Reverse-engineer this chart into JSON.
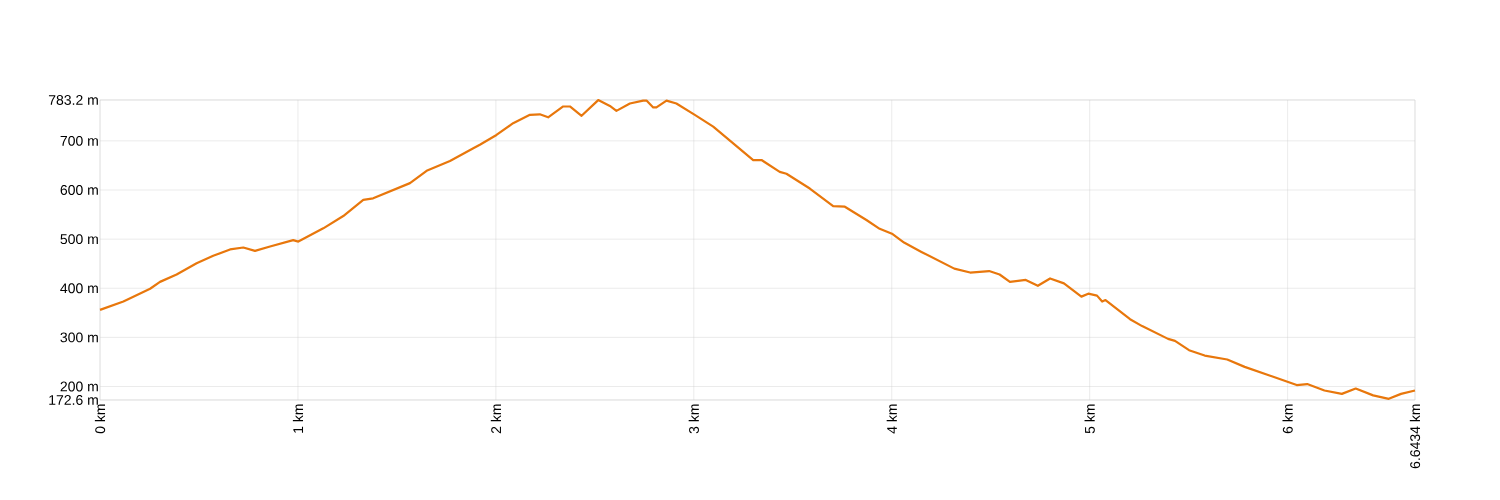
{
  "chart_data": {
    "type": "line",
    "color": "#e8770c",
    "grid": true,
    "marker": "none",
    "line_style": "solid",
    "xlim": [
      0,
      6.6434
    ],
    "ylim": [
      172.6,
      783.2
    ],
    "xticks": [
      {
        "value": 0,
        "label": "0 km"
      },
      {
        "value": 1,
        "label": "1 km"
      },
      {
        "value": 2,
        "label": "2 km"
      },
      {
        "value": 3,
        "label": "3 km"
      },
      {
        "value": 4,
        "label": "4 km"
      },
      {
        "value": 5,
        "label": "5 km"
      },
      {
        "value": 6,
        "label": "6 km"
      },
      {
        "value": 6.6434,
        "label": "6.6434 km"
      }
    ],
    "yticks": [
      {
        "value": 172.6,
        "label": "172.6 m"
      },
      {
        "value": 200,
        "label": "200 m"
      },
      {
        "value": 300,
        "label": "300 m"
      },
      {
        "value": 400,
        "label": "400 m"
      },
      {
        "value": 500,
        "label": "500 m"
      },
      {
        "value": 600,
        "label": "600 m"
      },
      {
        "value": 700,
        "label": "700 m"
      },
      {
        "value": 783.2,
        "label": "783.2 m"
      }
    ],
    "x": [
      0,
      0.118,
      0.253,
      0.303,
      0.387,
      0.488,
      0.572,
      0.657,
      0.724,
      0.783,
      0.859,
      0.976,
      1.002,
      1.128,
      1.229,
      1.33,
      1.38,
      1.566,
      1.65,
      1.768,
      1.886,
      1.919,
      2.003,
      2.087,
      2.172,
      2.222,
      2.264,
      2.34,
      2.374,
      2.433,
      2.517,
      2.576,
      2.609,
      2.677,
      2.744,
      2.761,
      2.795,
      2.811,
      2.862,
      2.912,
      3.005,
      3.098,
      3.199,
      3.3,
      3.342,
      3.434,
      3.468,
      3.586,
      3.704,
      3.763,
      3.872,
      3.939,
      4.001,
      4.062,
      4.15,
      4.316,
      4.396,
      4.492,
      4.545,
      4.597,
      4.677,
      4.738,
      4.8,
      4.87,
      4.958,
      4.993,
      5.037,
      5.063,
      5.08,
      5.204,
      5.265,
      5.396,
      5.431,
      5.502,
      5.581,
      5.695,
      5.783,
      5.905,
      6.046,
      6.099,
      6.186,
      6.274,
      6.344,
      6.432,
      6.511,
      6.573,
      6.6434
    ],
    "values": [
      356,
      373,
      399,
      413,
      428,
      451,
      466,
      479,
      483,
      476,
      485,
      498,
      495,
      522,
      547,
      580,
      583,
      614,
      639,
      659,
      685,
      692,
      712,
      736,
      753,
      754,
      748,
      770,
      770,
      751,
      783,
      771,
      761,
      776,
      782,
      782,
      768,
      768,
      782,
      776,
      753,
      729,
      695,
      661,
      661,
      637,
      633,
      603,
      567,
      566,
      539,
      521,
      511,
      493,
      474,
      440,
      432,
      435,
      428,
      413,
      417,
      405,
      420,
      410,
      383,
      389,
      385,
      373,
      376,
      337,
      323,
      297,
      293,
      274,
      263,
      255,
      240,
      223,
      203,
      205,
      192,
      185,
      196,
      182,
      175,
      185,
      192
    ]
  }
}
